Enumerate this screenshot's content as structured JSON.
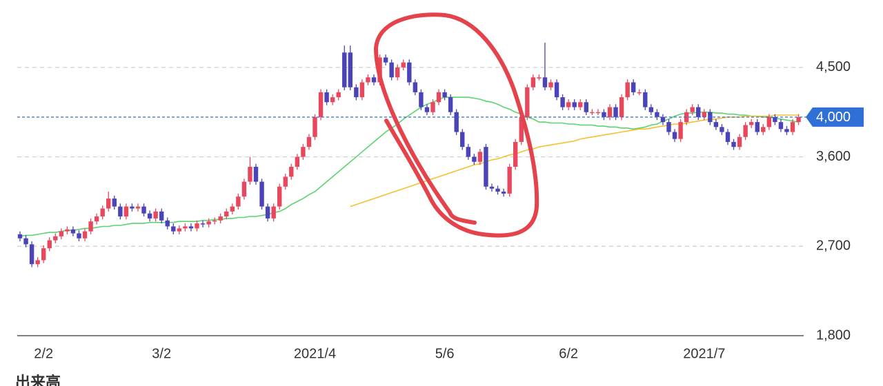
{
  "chart_data": {
    "type": "candlestick",
    "categories": [
      null,
      null,
      null,
      null,
      "2/2",
      null,
      null,
      null,
      null,
      null,
      null,
      null,
      null,
      null,
      null,
      null,
      null,
      null,
      null,
      null,
      null,
      null,
      null,
      null,
      "3/2",
      null,
      null,
      null,
      null,
      null,
      null,
      null,
      null,
      null,
      null,
      null,
      null,
      null,
      null,
      null,
      null,
      null,
      null,
      null,
      null,
      null,
      null,
      null,
      null,
      null,
      "2021/4",
      null,
      null,
      null,
      null,
      null,
      null,
      null,
      null,
      null,
      null,
      null,
      null,
      null,
      null,
      null,
      null,
      null,
      null,
      null,
      null,
      null,
      "5/6",
      null,
      null,
      null,
      null,
      null,
      null,
      null,
      null,
      null,
      null,
      null,
      null,
      null,
      null,
      null,
      null,
      null,
      null,
      null,
      null,
      "6/2",
      null,
      null,
      null,
      null,
      null,
      null,
      null,
      null,
      null,
      null,
      null,
      null,
      null,
      null,
      null,
      null,
      null,
      null,
      null,
      null,
      null,
      null,
      "2021/7",
      null,
      null,
      null,
      null,
      null,
      null,
      null,
      null,
      null,
      null,
      null,
      null,
      null,
      null,
      null,
      null
    ],
    "open": [
      2820,
      2780,
      2720,
      2520,
      2560,
      2680,
      2760,
      2800,
      2850,
      2870,
      2830,
      2780,
      2850,
      2950,
      3000,
      3080,
      3180,
      3100,
      3000,
      3100,
      3080,
      3100,
      3030,
      2980,
      3050,
      2960,
      2900,
      2850,
      2880,
      2900,
      2880,
      2930,
      2920,
      2950,
      2960,
      3000,
      3050,
      3100,
      3200,
      3350,
      3500,
      3350,
      3100,
      2980,
      3100,
      3300,
      3400,
      3500,
      3600,
      3700,
      3800,
      4000,
      4250,
      4150,
      4200,
      4650,
      4650,
      4300,
      4200,
      4350,
      4400,
      4350,
      4600,
      4550,
      4400,
      4500,
      4550,
      4350,
      4250,
      4100,
      4050,
      4150,
      4250,
      4200,
      4050,
      3850,
      3700,
      3600,
      3550,
      3700,
      3300,
      3280,
      3250,
      3230,
      3500,
      3750,
      4000,
      4300,
      4400,
      4400,
      4300,
      4350,
      4200,
      4100,
      4150,
      4100,
      4150,
      4050,
      4050,
      4050,
      4000,
      4100,
      4000,
      4200,
      4350,
      4250,
      4250,
      4100,
      4050,
      4000,
      3950,
      3850,
      3780,
      3950,
      4050,
      4100,
      4000,
      4050,
      3950,
      3900,
      3850,
      3750,
      3700,
      3800,
      3920,
      3950,
      3850,
      3900,
      4000,
      3950,
      3880,
      3850,
      3950
    ],
    "high": [
      2850,
      2810,
      2750,
      2590,
      2710,
      2790,
      2830,
      2880,
      2900,
      2900,
      2860,
      2880,
      2980,
      3030,
      3110,
      3250,
      3210,
      3130,
      3130,
      3130,
      3130,
      3130,
      3060,
      3080,
      3080,
      2990,
      2930,
      2910,
      2930,
      2930,
      2960,
      2960,
      2980,
      2990,
      3030,
      3080,
      3130,
      3230,
      3380,
      3600,
      3530,
      3380,
      3130,
      3130,
      3330,
      3430,
      3530,
      3630,
      3730,
      3830,
      4030,
      4280,
      4280,
      4230,
      4280,
      4720,
      4720,
      4330,
      4380,
      4430,
      4430,
      4630,
      4630,
      4580,
      4530,
      4580,
      4580,
      4380,
      4280,
      4130,
      4180,
      4280,
      4280,
      4230,
      4080,
      3880,
      3730,
      3630,
      3680,
      3730,
      3330,
      3310,
      3280,
      3530,
      3780,
      4030,
      4330,
      4430,
      4430,
      4750,
      4380,
      4380,
      4230,
      4180,
      4180,
      4180,
      4180,
      4080,
      4080,
      4080,
      4130,
      4130,
      4230,
      4380,
      4380,
      4280,
      4280,
      4130,
      4080,
      4030,
      3980,
      3880,
      3980,
      4080,
      4130,
      4130,
      4080,
      4080,
      3980,
      3930,
      3880,
      3780,
      3830,
      3950,
      3980,
      3980,
      3930,
      4030,
      4030,
      3980,
      3910,
      3980,
      4030
    ],
    "low": [
      2750,
      2690,
      2490,
      2490,
      2530,
      2650,
      2730,
      2770,
      2820,
      2800,
      2750,
      2750,
      2820,
      2920,
      2970,
      3050,
      3070,
      2970,
      2970,
      3050,
      3050,
      3000,
      2950,
      2950,
      2930,
      2870,
      2820,
      2820,
      2850,
      2850,
      2850,
      2890,
      2890,
      2920,
      2930,
      2970,
      3020,
      3070,
      3170,
      3320,
      3320,
      3070,
      2950,
      2950,
      3070,
      3270,
      3370,
      3470,
      3570,
      3670,
      3770,
      3970,
      4120,
      4120,
      4170,
      4270,
      4270,
      4170,
      4170,
      4320,
      4320,
      4320,
      4520,
      4370,
      4370,
      4470,
      4320,
      4220,
      4070,
      4020,
      4020,
      4120,
      4170,
      4020,
      3820,
      3670,
      3570,
      3520,
      3520,
      3270,
      3250,
      3220,
      3200,
      3200,
      3470,
      3720,
      3970,
      4270,
      4370,
      4270,
      4270,
      4170,
      4070,
      4070,
      4070,
      4070,
      4020,
      4020,
      4020,
      3970,
      3970,
      3970,
      3970,
      4170,
      4220,
      4220,
      4070,
      4020,
      3970,
      3920,
      3820,
      3750,
      3750,
      3920,
      4020,
      3970,
      3970,
      3920,
      3870,
      3820,
      3720,
      3670,
      3670,
      3770,
      3890,
      3820,
      3820,
      3870,
      3920,
      3850,
      3820,
      3820,
      3920
    ],
    "close": [
      2780,
      2720,
      2520,
      2560,
      2680,
      2760,
      2800,
      2850,
      2870,
      2830,
      2780,
      2850,
      2950,
      3000,
      3080,
      3180,
      3100,
      3000,
      3100,
      3080,
      3100,
      3030,
      2980,
      3050,
      2960,
      2900,
      2850,
      2880,
      2900,
      2880,
      2930,
      2920,
      2950,
      2960,
      3000,
      3050,
      3100,
      3200,
      3350,
      3500,
      3350,
      3100,
      2980,
      3100,
      3300,
      3400,
      3500,
      3600,
      3700,
      3800,
      4000,
      4250,
      4150,
      4200,
      4250,
      4300,
      4300,
      4200,
      4350,
      4400,
      4350,
      4600,
      4550,
      4400,
      4500,
      4550,
      4350,
      4250,
      4100,
      4050,
      4150,
      4250,
      4200,
      4050,
      3850,
      3700,
      3600,
      3550,
      3650,
      3300,
      3280,
      3250,
      3230,
      3500,
      3750,
      4000,
      4300,
      4400,
      4400,
      4300,
      4350,
      4200,
      4100,
      4150,
      4100,
      4150,
      4050,
      4050,
      4050,
      4000,
      4100,
      4000,
      4200,
      4350,
      4250,
      4250,
      4100,
      4050,
      4000,
      3950,
      3850,
      3780,
      3950,
      4050,
      4100,
      4000,
      4050,
      3950,
      3900,
      3850,
      3750,
      3700,
      3800,
      3920,
      3950,
      3850,
      3900,
      4000,
      3950,
      3880,
      3850,
      3950,
      4000
    ],
    "up_color": "#e8485e",
    "down_color": "#4a44b8",
    "moving_averages": [
      {
        "color": "#5cd36c",
        "values": [
          2800,
          2810,
          2810,
          2820,
          2830,
          2840,
          2840,
          2850,
          2860,
          2860,
          2870,
          2880,
          2880,
          2890,
          2900,
          2900,
          2910,
          2910,
          2920,
          2930,
          2930,
          2930,
          2940,
          2940,
          2940,
          2940,
          2940,
          2950,
          2950,
          2950,
          2950,
          2960,
          2960,
          2970,
          2970,
          2980,
          2980,
          2990,
          2990,
          3000,
          3000,
          3010,
          3020,
          3040,
          3050,
          3080,
          3120,
          3150,
          3180,
          3220,
          3250,
          3300,
          3350,
          3400,
          3450,
          3500,
          3550,
          3600,
          3650,
          3700,
          3750,
          3800,
          3850,
          3890,
          3930,
          3980,
          4020,
          4060,
          4100,
          4130,
          4150,
          4180,
          4200,
          4200,
          4200,
          4200,
          4200,
          4190,
          4180,
          4160,
          4150,
          4130,
          4100,
          4080,
          4050,
          4030,
          4000,
          3980,
          3950,
          3950,
          3940,
          3940,
          3940,
          3930,
          3930,
          3920,
          3920,
          3920,
          3910,
          3910,
          3900,
          3900,
          3890,
          3890,
          3880,
          3890,
          3900,
          3920,
          3930,
          3960,
          3980,
          4010,
          4030,
          4040,
          4040,
          4050,
          4050,
          4050,
          4040,
          4040,
          4030,
          4030,
          4020,
          4020,
          4010,
          4010,
          4000,
          4000,
          3990,
          3980,
          3970,
          3960,
          3950
        ]
      },
      {
        "color": "#f7c02b",
        "values": [
          null,
          null,
          null,
          null,
          null,
          null,
          null,
          null,
          null,
          null,
          null,
          null,
          null,
          null,
          null,
          null,
          null,
          null,
          null,
          null,
          null,
          null,
          null,
          null,
          null,
          null,
          null,
          null,
          null,
          null,
          null,
          null,
          null,
          null,
          null,
          null,
          null,
          null,
          null,
          null,
          null,
          null,
          null,
          null,
          null,
          null,
          null,
          null,
          null,
          null,
          null,
          null,
          null,
          null,
          null,
          null,
          3100,
          3120,
          3140,
          3160,
          3180,
          3200,
          3220,
          3240,
          3260,
          3280,
          3300,
          3320,
          3340,
          3360,
          3380,
          3400,
          3420,
          3440,
          3460,
          3480,
          3500,
          3520,
          3530,
          3550,
          3570,
          3580,
          3600,
          3620,
          3630,
          3650,
          3670,
          3680,
          3700,
          3710,
          3720,
          3730,
          3740,
          3750,
          3760,
          3780,
          3790,
          3800,
          3810,
          3820,
          3830,
          3840,
          3850,
          3860,
          3870,
          3880,
          3880,
          3890,
          3900,
          3910,
          3920,
          3930,
          3930,
          3940,
          3950,
          3960,
          3970,
          3980,
          3980,
          3990,
          4000,
          4000,
          4000,
          4010,
          4010,
          4010,
          4010,
          4010,
          4020,
          4020,
          4020,
          4020,
          4020
        ]
      }
    ],
    "ylim": [
      1800,
      5040
    ],
    "yticks": [
      {
        "value": 1800,
        "label": "1,800"
      },
      {
        "value": 2700,
        "label": "2,700"
      },
      {
        "value": 3600,
        "label": "3,600"
      },
      {
        "value": 4500,
        "label": "4,500"
      }
    ],
    "grid": true,
    "last_price": {
      "value": 4000,
      "label": "4,000",
      "color": "#2f6fd6"
    },
    "volume_label": "出来高"
  }
}
